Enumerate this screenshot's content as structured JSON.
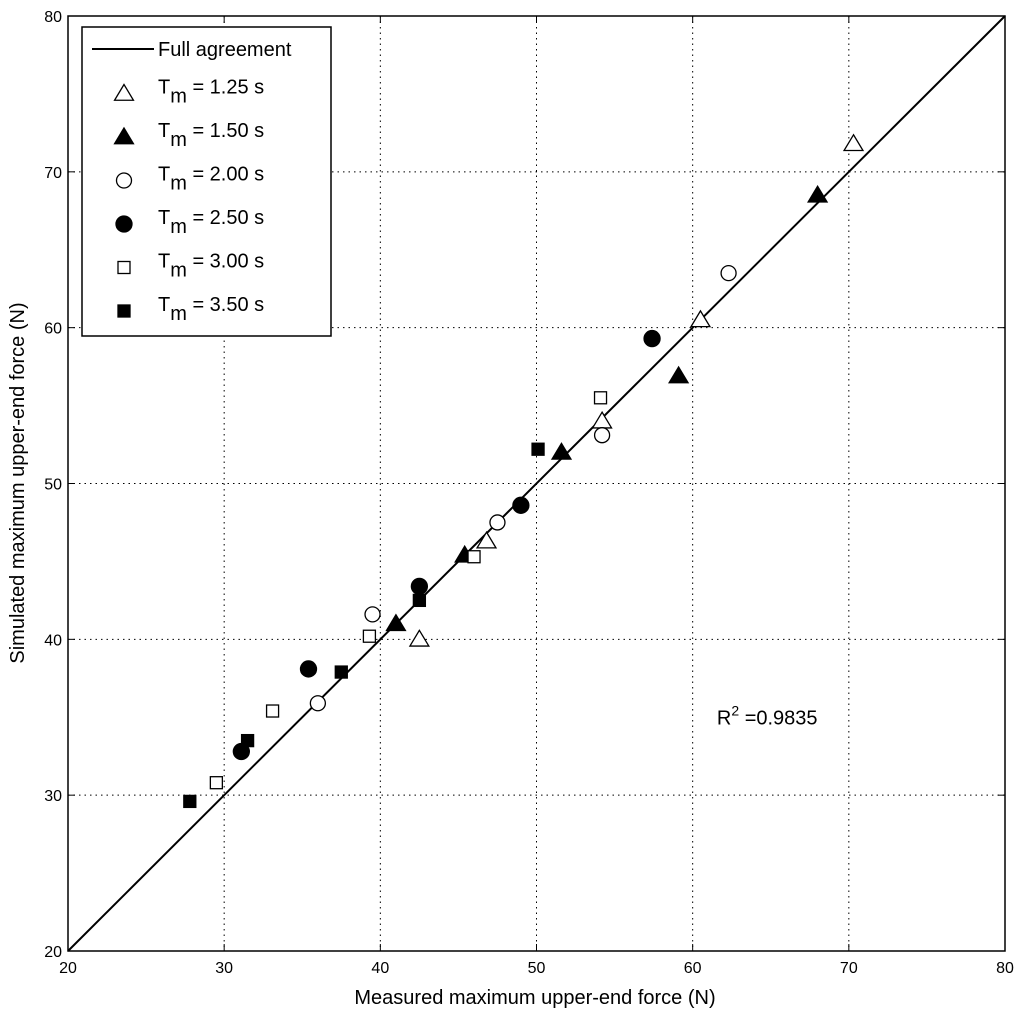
{
  "chart_data": {
    "type": "scatter",
    "title": "",
    "xlabel": "Measured maximum upper-end force (N)",
    "ylabel": "Simulated maximum upper-end force (N)",
    "xlim": [
      20,
      80
    ],
    "ylim": [
      20,
      80
    ],
    "xticks": [
      20,
      30,
      40,
      50,
      60,
      70,
      80
    ],
    "yticks": [
      20,
      30,
      40,
      50,
      60,
      70,
      80
    ],
    "xtick_labels": [
      "20",
      "30",
      "40",
      "50",
      "60",
      "70",
      "80"
    ],
    "ytick_labels": [
      "20",
      "30",
      "40",
      "50",
      "60",
      "70",
      "80"
    ],
    "grid": true,
    "grid_style": "dotted",
    "legend_position": "top-left",
    "reference_line": {
      "name": "Full agreement",
      "x": [
        20,
        80
      ],
      "y": [
        20,
        80
      ]
    },
    "annotation": {
      "text": "R",
      "sup": "2",
      "rest": " =0.9835",
      "x": 62,
      "y": 35
    },
    "series": [
      {
        "name": "T_m = 1.25 s",
        "label_main": "T",
        "label_sub": "m",
        "label_rest": " = 1.25 s",
        "marker": "triangle",
        "filled": false,
        "points": [
          [
            42.5,
            40.0
          ],
          [
            46.8,
            46.3
          ],
          [
            54.2,
            54.0
          ],
          [
            60.5,
            60.5
          ],
          [
            70.3,
            71.8
          ]
        ]
      },
      {
        "name": "T_m = 1.50 s",
        "label_main": "T",
        "label_sub": "m",
        "label_rest": " = 1.50 s",
        "marker": "triangle",
        "filled": true,
        "points": [
          [
            41.0,
            41.0
          ],
          [
            45.4,
            45.4
          ],
          [
            51.6,
            52.0
          ],
          [
            59.1,
            56.9
          ],
          [
            68.0,
            68.5
          ]
        ]
      },
      {
        "name": "T_m = 2.00 s",
        "label_main": "T",
        "label_sub": "m",
        "label_rest": " = 2.00 s",
        "marker": "circle",
        "filled": false,
        "points": [
          [
            36.0,
            35.9
          ],
          [
            39.5,
            41.6
          ],
          [
            47.5,
            47.5
          ],
          [
            54.2,
            53.1
          ],
          [
            62.3,
            63.5
          ]
        ]
      },
      {
        "name": "T_m = 2.50 s",
        "label_main": "T",
        "label_sub": "m",
        "label_rest": " = 2.50 s",
        "marker": "circle",
        "filled": true,
        "points": [
          [
            31.1,
            32.8
          ],
          [
            35.4,
            38.1
          ],
          [
            42.5,
            43.4
          ],
          [
            49.0,
            48.6
          ],
          [
            57.4,
            59.3
          ]
        ]
      },
      {
        "name": "T_m = 3.00 s",
        "label_main": "T",
        "label_sub": "m",
        "label_rest": " = 3.00 s",
        "marker": "square",
        "filled": false,
        "points": [
          [
            29.5,
            30.8
          ],
          [
            33.1,
            35.4
          ],
          [
            39.3,
            40.2
          ],
          [
            46.0,
            45.3
          ],
          [
            54.1,
            55.5
          ]
        ]
      },
      {
        "name": "T_m = 3.50 s",
        "label_main": "T",
        "label_sub": "m",
        "label_rest": " = 3.50 s",
        "marker": "square",
        "filled": true,
        "points": [
          [
            27.8,
            29.6
          ],
          [
            31.5,
            33.5
          ],
          [
            37.5,
            37.9
          ],
          [
            42.5,
            42.5
          ],
          [
            50.1,
            52.2
          ]
        ]
      }
    ]
  }
}
